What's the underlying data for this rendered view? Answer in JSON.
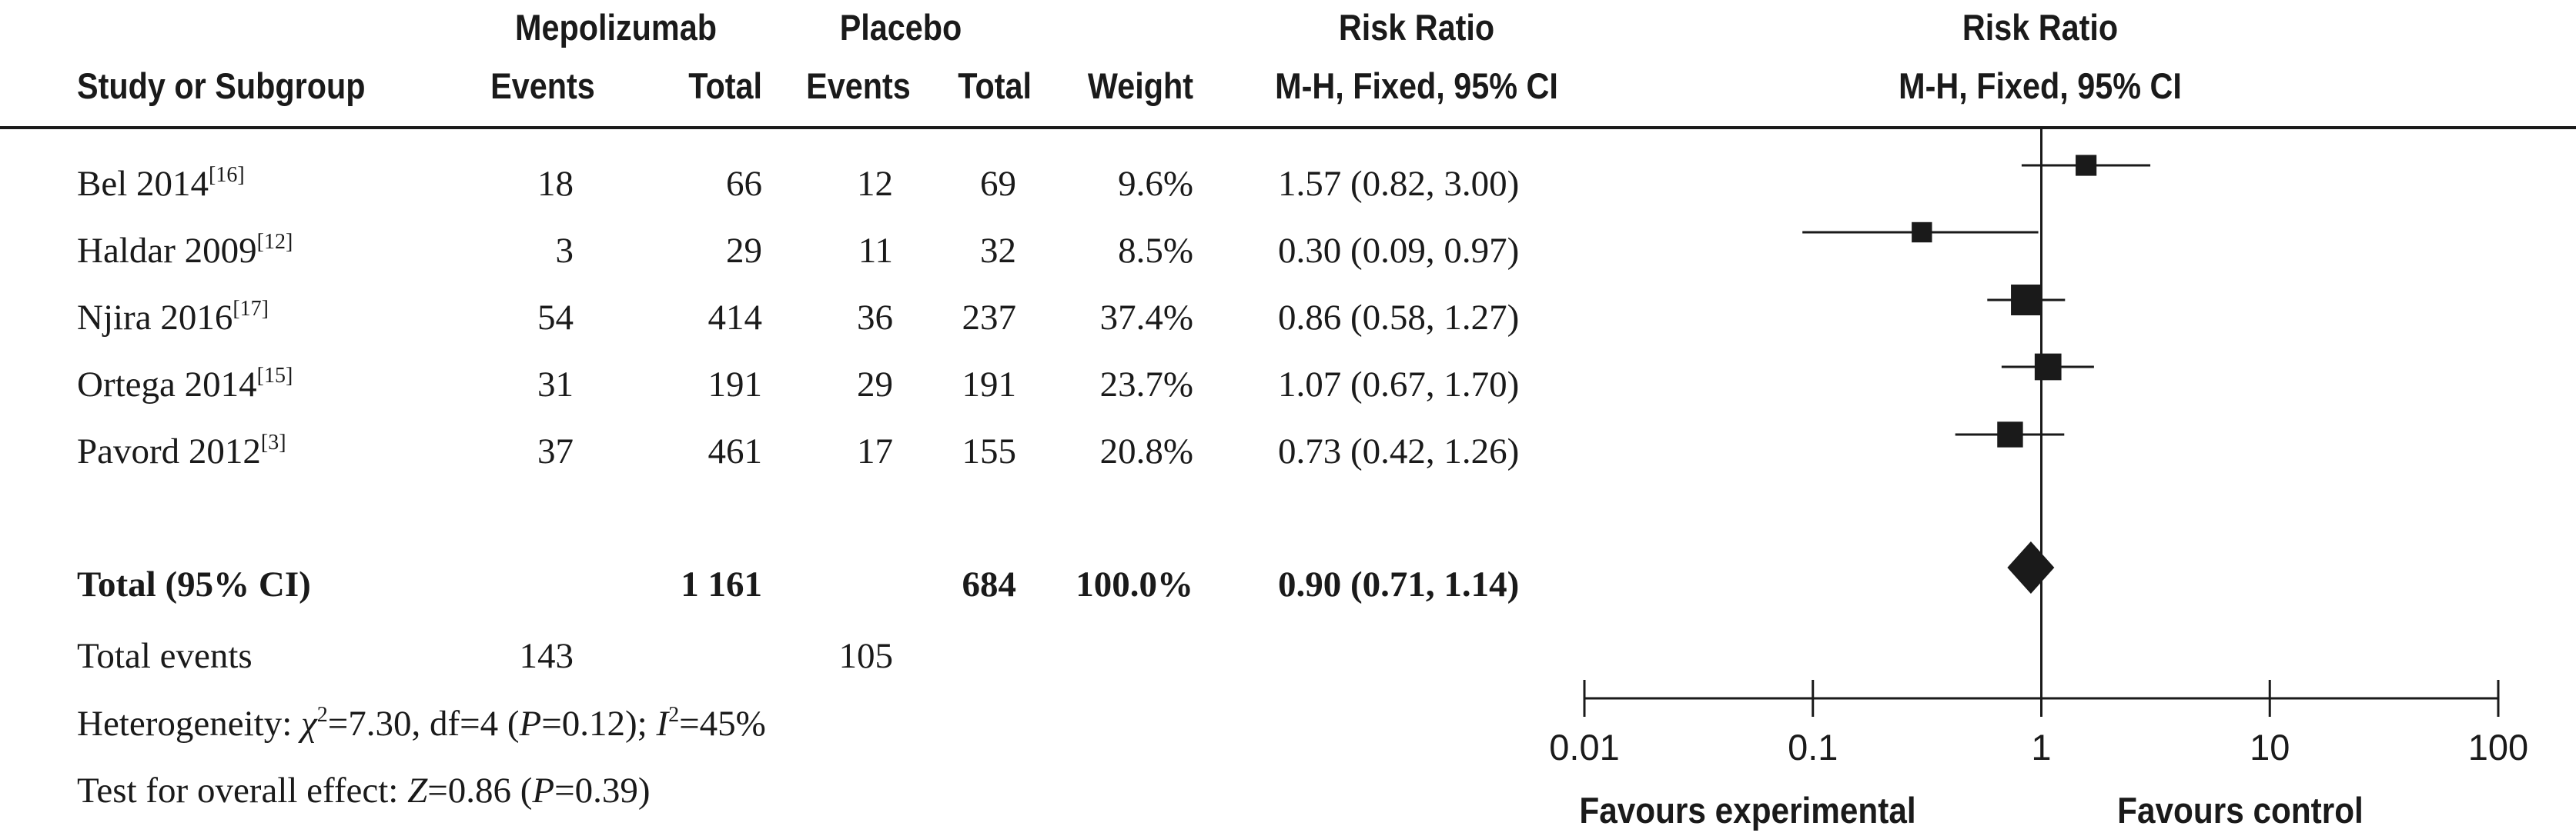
{
  "headers": {
    "mepolizumab": "Mepolizumab",
    "placebo": "Placebo",
    "risk_ratio": "Risk Ratio",
    "risk_ratio_plot": "Risk Ratio",
    "study": "Study or Subgroup",
    "events_a": "Events",
    "total_a": "Total",
    "events_b": "Events",
    "total_b": "Total",
    "weight": "Weight",
    "method": "M-H, Fixed, 95% CI",
    "method_plot": "M-H, Fixed, 95% CI"
  },
  "studies": [
    {
      "name": "Bel 2014",
      "ref": "[16]",
      "events_a": "18",
      "total_a": "66",
      "events_b": "12",
      "total_b": "69",
      "weight": "9.6%",
      "ci_text": "1.57 (0.82, 3.00)"
    },
    {
      "name": "Haldar 2009",
      "ref": "[12]",
      "events_a": "3",
      "total_a": "29",
      "events_b": "11",
      "total_b": "32",
      "weight": "8.5%",
      "ci_text": "0.30 (0.09, 0.97)"
    },
    {
      "name": "Njira 2016",
      "ref": "[17]",
      "events_a": "54",
      "total_a": "414",
      "events_b": "36",
      "total_b": "237",
      "weight": "37.4%",
      "ci_text": "0.86 (0.58, 1.27)"
    },
    {
      "name": "Ortega 2014",
      "ref": "[15]",
      "events_a": "31",
      "total_a": "191",
      "events_b": "29",
      "total_b": "191",
      "weight": "23.7%",
      "ci_text": "1.07 (0.67, 1.70)"
    },
    {
      "name": "Pavord 2012",
      "ref": "[3]",
      "events_a": "37",
      "total_a": "461",
      "events_b": "17",
      "total_b": "155",
      "weight": "20.8%",
      "ci_text": "0.73 (0.42, 1.26)"
    }
  ],
  "total": {
    "label": "Total (95% CI)",
    "total_a": "1 161",
    "total_b": "684",
    "weight": "100.0%",
    "ci_text": "0.90 (0.71, 1.14)"
  },
  "events": {
    "label": "Total events",
    "a": "143",
    "b": "105"
  },
  "heterogeneity": {
    "prefix": "Heterogeneity: ",
    "chi_sym": "χ",
    "chi_sup": "2",
    "chi_val": "=7.30, df=4 (",
    "p_sym": "P",
    "p_val": "=0.12); ",
    "i_sym": "I",
    "i_sup": "2",
    "i_val": "=45%"
  },
  "overall": {
    "prefix": "Test for overall effect: ",
    "z_sym": "Z",
    "z_val": "=0.86 (",
    "p_sym": "P",
    "p_val": "=0.39)"
  },
  "axis": {
    "favours_left": "Favours experimental",
    "favours_right": "Favours control"
  },
  "chart_data": {
    "type": "forest",
    "scale": "log",
    "xlim": [
      0.01,
      100
    ],
    "ticks": [
      {
        "value": 0.01,
        "label": "0.01"
      },
      {
        "value": 0.1,
        "label": "0.1"
      },
      {
        "value": 1,
        "label": "1"
      },
      {
        "value": 10,
        "label": "10"
      },
      {
        "value": 100,
        "label": "100"
      }
    ],
    "studies": [
      {
        "name": "Bel 2014",
        "rr": 1.57,
        "lower": 0.82,
        "upper": 3.0,
        "weight": 9.6
      },
      {
        "name": "Haldar 2009",
        "rr": 0.3,
        "lower": 0.09,
        "upper": 0.97,
        "weight": 8.5
      },
      {
        "name": "Njira 2016",
        "rr": 0.86,
        "lower": 0.58,
        "upper": 1.27,
        "weight": 37.4
      },
      {
        "name": "Ortega 2014",
        "rr": 1.07,
        "lower": 0.67,
        "upper": 1.7,
        "weight": 23.7
      },
      {
        "name": "Pavord 2012",
        "rr": 0.73,
        "lower": 0.42,
        "upper": 1.26,
        "weight": 20.8
      }
    ],
    "pooled": {
      "rr": 0.9,
      "lower": 0.71,
      "upper": 1.14
    }
  }
}
